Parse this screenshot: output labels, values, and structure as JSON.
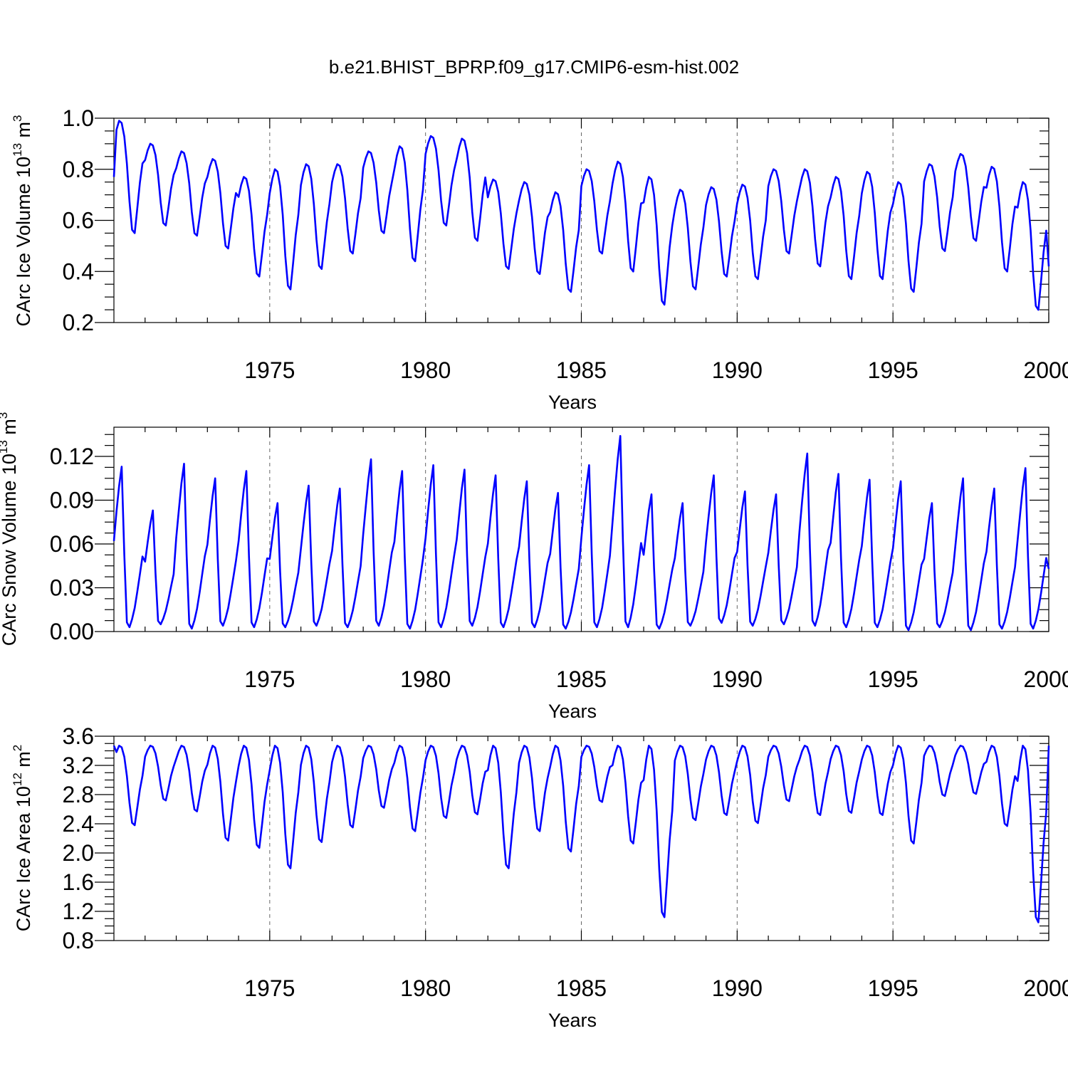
{
  "title": "b.e21.BHIST_BPRP.f09_g17.CMIP6-esm-hist.002",
  "colors": {
    "series": "#0000ff",
    "grid": "#666666",
    "axes": "#000000"
  },
  "chart_data": [
    {
      "type": "line",
      "name": "ice-volume",
      "title": "b.e21.BHIST_BPRP.f09_g17.CMIP6-esm-hist.002",
      "ylabel": {
        "base": "CArc Ice Volume 10",
        "sup": "13",
        "mid": " m",
        "sup2": "3"
      },
      "xlabel": "Years",
      "xlim": [
        1970,
        2000
      ],
      "ylim": [
        0.2,
        1.0
      ],
      "yticks": [
        0.2,
        0.4,
        0.6,
        0.8,
        1.0
      ],
      "yticklabels": [
        "0.2",
        "0.4",
        "0.6",
        "0.8",
        "1.0"
      ],
      "xticks": [
        1975,
        1980,
        1985,
        1990,
        1995,
        2000
      ],
      "xticklabels": [
        "1975",
        "1980",
        "1985",
        "1990",
        "1995",
        "2000"
      ],
      "grid_x": true,
      "series": [
        {
          "name": "monthly",
          "minima": [
            0.55,
            0.58,
            0.54,
            0.49,
            0.38,
            0.33,
            0.41,
            0.47,
            0.55,
            0.44,
            0.58,
            0.52,
            0.41,
            0.39,
            0.32,
            0.47,
            0.4,
            0.27,
            0.33,
            0.38,
            0.37,
            0.47,
            0.42,
            0.37,
            0.37,
            0.32,
            0.48,
            0.52,
            0.4,
            0.25
          ],
          "maxima": [
            0.99,
            0.9,
            0.87,
            0.84,
            0.77,
            0.8,
            0.82,
            0.82,
            0.87,
            0.89,
            0.93,
            0.92,
            0.76,
            0.75,
            0.71,
            0.8,
            0.83,
            0.77,
            0.72,
            0.73,
            0.74,
            0.8,
            0.8,
            0.77,
            0.79,
            0.75,
            0.82,
            0.86,
            0.81,
            0.75
          ],
          "start": 0.77,
          "end": 0.42
        }
      ]
    },
    {
      "type": "line",
      "name": "snow-volume",
      "ylabel": {
        "base": "CArc Snow Volume 10",
        "sup": "13",
        "mid": " m",
        "sup2": "3"
      },
      "xlabel": "Years",
      "xlim": [
        1970,
        2000
      ],
      "ylim": [
        0.0,
        0.14
      ],
      "yticks": [
        0.0,
        0.03,
        0.06,
        0.09,
        0.12
      ],
      "yticklabels": [
        "0.00",
        "0.03",
        "0.06",
        "0.09",
        "0.12"
      ],
      "xticks": [
        1975,
        1980,
        1985,
        1990,
        1995,
        2000
      ],
      "xticklabels": [
        "1975",
        "1980",
        "1985",
        "1990",
        "1995",
        "2000"
      ],
      "grid_x": true,
      "series": [
        {
          "name": "monthly",
          "minima": [
            0.003,
            0.005,
            0.002,
            0.004,
            0.003,
            0.003,
            0.004,
            0.003,
            0.004,
            0.002,
            0.003,
            0.004,
            0.003,
            0.003,
            0.002,
            0.003,
            0.003,
            0.002,
            0.004,
            0.006,
            0.004,
            0.005,
            0.004,
            0.003,
            0.003,
            0.001,
            0.003,
            0.001,
            0.002,
            0.002
          ],
          "maxima": [
            0.113,
            0.083,
            0.115,
            0.105,
            0.11,
            0.088,
            0.1,
            0.098,
            0.118,
            0.11,
            0.114,
            0.111,
            0.107,
            0.103,
            0.095,
            0.114,
            0.134,
            0.094,
            0.088,
            0.107,
            0.096,
            0.094,
            0.122,
            0.108,
            0.104,
            0.103,
            0.088,
            0.105,
            0.098,
            0.112
          ],
          "start": 0.062,
          "end": 0.043
        }
      ]
    },
    {
      "type": "line",
      "name": "ice-area",
      "ylabel": {
        "base": "CArc Ice Area 10",
        "sup": "12",
        "mid": " m",
        "sup2": "2"
      },
      "xlabel": "Years",
      "xlim": [
        1970,
        2000
      ],
      "ylim": [
        0.8,
        3.6
      ],
      "yticks": [
        0.8,
        1.2,
        1.6,
        2.0,
        2.4,
        2.8,
        3.2,
        3.6
      ],
      "yticklabels": [
        "0.8",
        "1.2",
        "1.6",
        "2.0",
        "2.4",
        "2.8",
        "3.2",
        "3.6"
      ],
      "xticks": [
        1975,
        1980,
        1985,
        1990,
        1995,
        2000
      ],
      "xticklabels": [
        "1975",
        "1980",
        "1985",
        "1990",
        "1995",
        "2000"
      ],
      "grid_x": true,
      "series": [
        {
          "name": "monthly",
          "minima": [
            2.38,
            2.72,
            2.57,
            2.17,
            2.07,
            1.79,
            2.15,
            2.35,
            2.62,
            2.3,
            2.48,
            2.53,
            1.79,
            2.3,
            2.02,
            2.7,
            2.13,
            1.12,
            2.45,
            2.52,
            2.41,
            2.71,
            2.52,
            2.55,
            2.52,
            2.13,
            2.78,
            2.81,
            2.37,
            1.05
          ],
          "maxima": [
            3.47,
            3.47,
            3.47,
            3.47,
            3.47,
            3.47,
            3.47,
            3.47,
            3.47,
            3.47,
            3.47,
            3.47,
            3.47,
            3.47,
            3.47,
            3.47,
            3.47,
            3.47,
            3.47,
            3.47,
            3.47,
            3.47,
            3.47,
            3.47,
            3.47,
            3.47,
            3.47,
            3.47,
            3.47,
            3.47
          ],
          "start": 3.47,
          "end": 3.47
        }
      ]
    }
  ]
}
